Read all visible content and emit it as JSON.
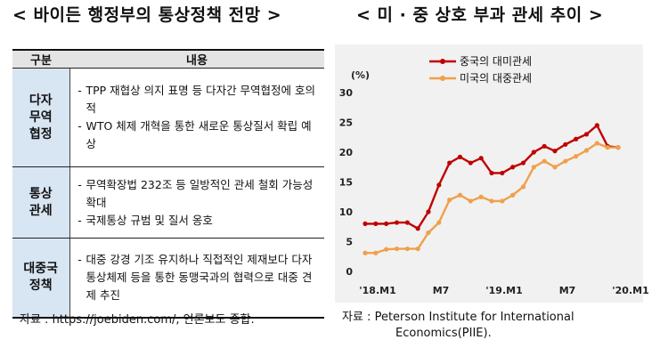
{
  "left": {
    "title": "< 바이든 행정부의 통상정책 전망 >",
    "header": {
      "category": "구분",
      "content": "내용"
    },
    "rows": [
      {
        "category": [
          "다자",
          "무역",
          "협정"
        ],
        "bullets": [
          "TPP 재협상 의지 표명 등 다자간 무역협정에 호의적",
          "WTO 체제 개혁을 통한 새로운 통상질서 확립 예상"
        ]
      },
      {
        "category": [
          "통상",
          "관세"
        ],
        "bullets": [
          "무역확장법 232조 등 일방적인 관세 철회 가능성 확대",
          "국제통상 규범 및 질서 옹호"
        ]
      },
      {
        "category": [
          "대중국",
          "정책"
        ],
        "bullets": [
          "대중 강경 기조 유지하나 직접적인 제재보다 다자통상체제 등을 통한 동맹국과의 협력으로 대중 견제 추진"
        ]
      }
    ],
    "source": "자료 : https://joebiden.com/, 언론보도 종합."
  },
  "right": {
    "title": "< 미 · 중 상호 부과 관세 추이 >",
    "source_line1": "자료 : Peterson Institute for International",
    "source_line2": "Economics(PIIE)."
  },
  "chart_data": {
    "type": "line",
    "unit_label": "(%)",
    "ylim": [
      0,
      30
    ],
    "yticks": [
      0,
      5,
      10,
      15,
      20,
      25,
      30
    ],
    "x_tick_labels": [
      {
        "index": 0,
        "label": "'18.M1"
      },
      {
        "index": 6,
        "label": "M7"
      },
      {
        "index": 12,
        "label": "'19.M1"
      },
      {
        "index": 18,
        "label": "M7"
      },
      {
        "index": 24,
        "label": "'20.M1"
      }
    ],
    "grid": false,
    "legend": "top-left",
    "series": [
      {
        "name": "중국의 대미관세",
        "color": "#c00000",
        "values": [
          8.0,
          8.0,
          8.0,
          8.2,
          8.2,
          7.2,
          10.0,
          14.5,
          18.2,
          19.2,
          18.2,
          19.0,
          16.5,
          16.5,
          17.5,
          18.2,
          20.0,
          21.0,
          20.2,
          21.3,
          22.2,
          23.0,
          24.5,
          21.0,
          20.8
        ]
      },
      {
        "name": "미국의 대중관세",
        "color": "#f0a04b",
        "values": [
          3.1,
          3.1,
          3.7,
          3.8,
          3.8,
          3.8,
          6.5,
          8.2,
          12.0,
          12.8,
          11.8,
          12.5,
          11.8,
          11.8,
          12.8,
          14.2,
          17.5,
          18.5,
          17.5,
          18.5,
          19.3,
          20.3,
          21.5,
          20.8,
          20.8
        ]
      }
    ]
  }
}
